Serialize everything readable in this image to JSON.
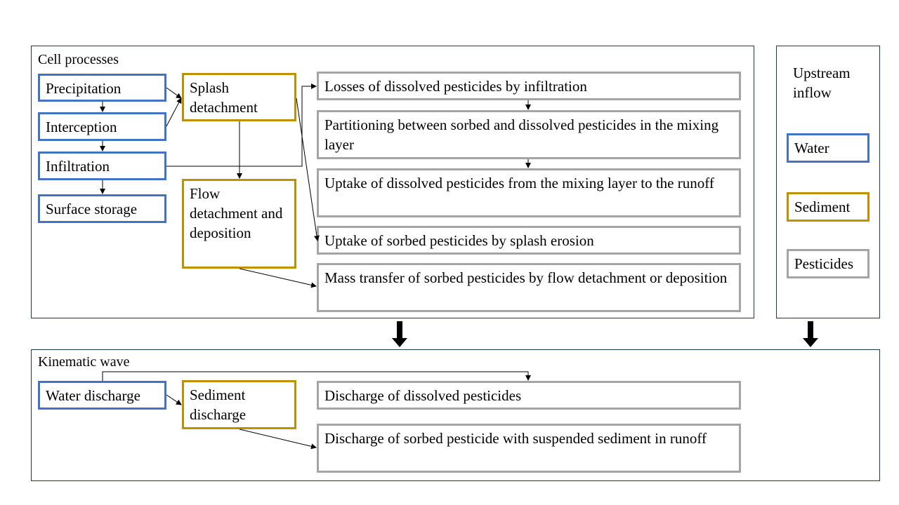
{
  "cell_processes": {
    "title": "Cell processes",
    "water": [
      "Precipitation",
      "Interception",
      "Infiltration",
      "Surface storage"
    ],
    "sediment": [
      "Splash detachment",
      "Flow detachment and deposition"
    ],
    "pesticides": [
      "Losses of dissolved pesticides by infiltration",
      "Partitioning between sorbed and dissolved pesticides in the mixing layer",
      "Uptake of dissolved pesticides from the mixing layer to the runoff",
      "Uptake of sorbed pesticides by splash erosion",
      "Mass transfer of sorbed pesticides by flow detachment or deposition"
    ]
  },
  "legend": {
    "title": "Upstream inflow",
    "items": [
      {
        "label": "Water",
        "color": "#4472c4"
      },
      {
        "label": "Sediment",
        "color": "#bf9000"
      },
      {
        "label": "Pesticides",
        "color": "#a5a5a5"
      }
    ]
  },
  "kinematic_wave": {
    "title": "Kinematic wave",
    "water": [
      "Water discharge"
    ],
    "sediment": [
      "Sediment discharge"
    ],
    "pesticides": [
      "Discharge of dissolved pesticides",
      "Discharge of sorbed pesticide with suspended sediment in runoff"
    ]
  }
}
